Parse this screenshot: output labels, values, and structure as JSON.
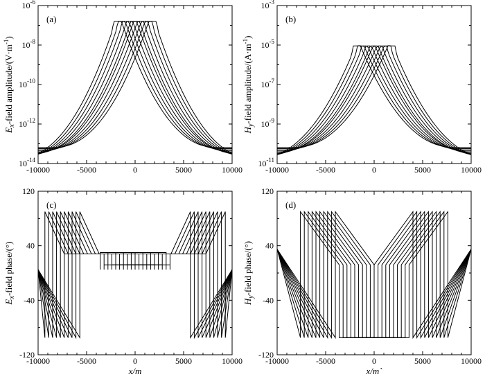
{
  "colors": {
    "line": "#000000",
    "background": "#ffffff"
  },
  "chart_data": [
    {
      "id": "a",
      "type": "line",
      "panel_label": "(a)",
      "ylabel_prefix": "E",
      "ylabel_sub": "x",
      "ylabel_rest": "-field amplitude/(V·m",
      "ylabel_sup": "-1",
      "ylabel_end": ")",
      "xlabel": "",
      "yscale": "log",
      "xlim": [
        -10000,
        10000
      ],
      "ylim": [
        1e-14,
        1e-06
      ],
      "xticks": [
        "-10000",
        "-5000",
        "0",
        "5000",
        "10000"
      ],
      "yticks": [
        {
          "base": "10",
          "exp": "-6"
        },
        {
          "base": "10",
          "exp": "-8"
        },
        {
          "base": "10",
          "exp": "-10"
        },
        {
          "base": "10",
          "exp": "-12"
        },
        {
          "base": "10",
          "exp": "-14"
        }
      ],
      "curve_family": {
        "count": 10,
        "source_half_width": 300,
        "source_centers": [
          -1900,
          -1467,
          -1033,
          -600,
          -167,
          167,
          600,
          1033,
          1467,
          1900
        ],
        "peak_value": 1.6e-07,
        "tail_value": 3.5e-14,
        "tail_x": 10000,
        "tail_offset_decades": 0.06
      }
    },
    {
      "id": "b",
      "type": "line",
      "panel_label": "(b)",
      "ylabel_prefix": "H",
      "ylabel_sub": "y",
      "ylabel_rest": "-field amplitude/(A·m",
      "ylabel_sup": "-1",
      "ylabel_end": ")",
      "xlabel": "",
      "yscale": "log",
      "xlim": [
        -10000,
        10000
      ],
      "ylim": [
        1e-11,
        0.001
      ],
      "xticks": [
        "-10000",
        "-5000",
        "0",
        "5000",
        "10000"
      ],
      "yticks": [
        {
          "base": "10",
          "exp": "-3"
        },
        {
          "base": "10",
          "exp": "-5"
        },
        {
          "base": "10",
          "exp": "-7"
        },
        {
          "base": "10",
          "exp": "-9"
        },
        {
          "base": "10",
          "exp": "-11"
        }
      ],
      "curve_family": {
        "count": 10,
        "source_half_width": 250,
        "source_centers": [
          -1900,
          -1467,
          -1033,
          -600,
          -167,
          167,
          600,
          1033,
          1467,
          1900
        ],
        "peak_value": 9e-06,
        "tail_value": 3.5e-11,
        "tail_x": 10000,
        "tail_offset_decades": 0.06
      }
    },
    {
      "id": "c",
      "type": "line",
      "panel_label": "(c)",
      "ylabel_prefix": "E",
      "ylabel_sub": "x",
      "ylabel_rest": "-field phase/(°)",
      "ylabel_sup": "",
      "ylabel_end": "",
      "xlabel": "x/m",
      "yscale": "linear",
      "xlim": [
        -10000,
        10000
      ],
      "ylim": [
        -120,
        120
      ],
      "xticks": [
        "-10000",
        "-5000",
        "0",
        "5000",
        "10000"
      ],
      "yticks": [
        "120",
        "40",
        "-40",
        "-120"
      ],
      "ytick_values": [
        120,
        40,
        -40,
        -120
      ],
      "curve_family": {
        "count": 10,
        "offsets": [
          0,
          400,
          800,
          1200,
          1600,
          2000,
          2400,
          2800,
          3200,
          3600
        ],
        "left_profile": [
          [
            -10000,
            5
          ],
          [
            -7500,
            -95
          ],
          [
            -7500,
            90
          ],
          [
            -5500,
            28
          ],
          [
            -1800,
            28
          ],
          [
            -1800,
            5
          ]
        ],
        "center_values": [
          30,
          12
        ],
        "right_profile": [
          [
            1800,
            5
          ],
          [
            1800,
            28
          ],
          [
            5500,
            28
          ],
          [
            7500,
            90
          ],
          [
            7500,
            -95
          ],
          [
            10000,
            5
          ]
        ]
      }
    },
    {
      "id": "d",
      "type": "line",
      "panel_label": "(d)",
      "ylabel_prefix": "H",
      "ylabel_sub": "y",
      "ylabel_rest": "-field phase/(°)",
      "ylabel_sup": "",
      "ylabel_end": "",
      "xlabel": "x/m`",
      "yscale": "linear",
      "xlim": [
        -10000,
        10000
      ],
      "ylim": [
        -120,
        120
      ],
      "xticks": [
        "-10000",
        "-5000",
        "0",
        "5000",
        "10000"
      ],
      "yticks": [
        "120",
        "40",
        "-40",
        "-120"
      ],
      "ytick_values": [
        120,
        40,
        -40,
        -120
      ],
      "curve_family": {
        "count": 10,
        "offsets": [
          0,
          400,
          800,
          1200,
          1600,
          2000,
          2400,
          2800,
          3200,
          3600
        ],
        "left_profile": [
          [
            -10000,
            35
          ],
          [
            -5800,
            -95
          ],
          [
            -5800,
            90
          ],
          [
            -1800,
            12
          ],
          [
            -1800,
            -95
          ]
        ],
        "right_profile": [
          [
            1800,
            -95
          ],
          [
            1800,
            12
          ],
          [
            5800,
            90
          ],
          [
            5800,
            -95
          ],
          [
            10000,
            35
          ]
        ]
      }
    }
  ]
}
